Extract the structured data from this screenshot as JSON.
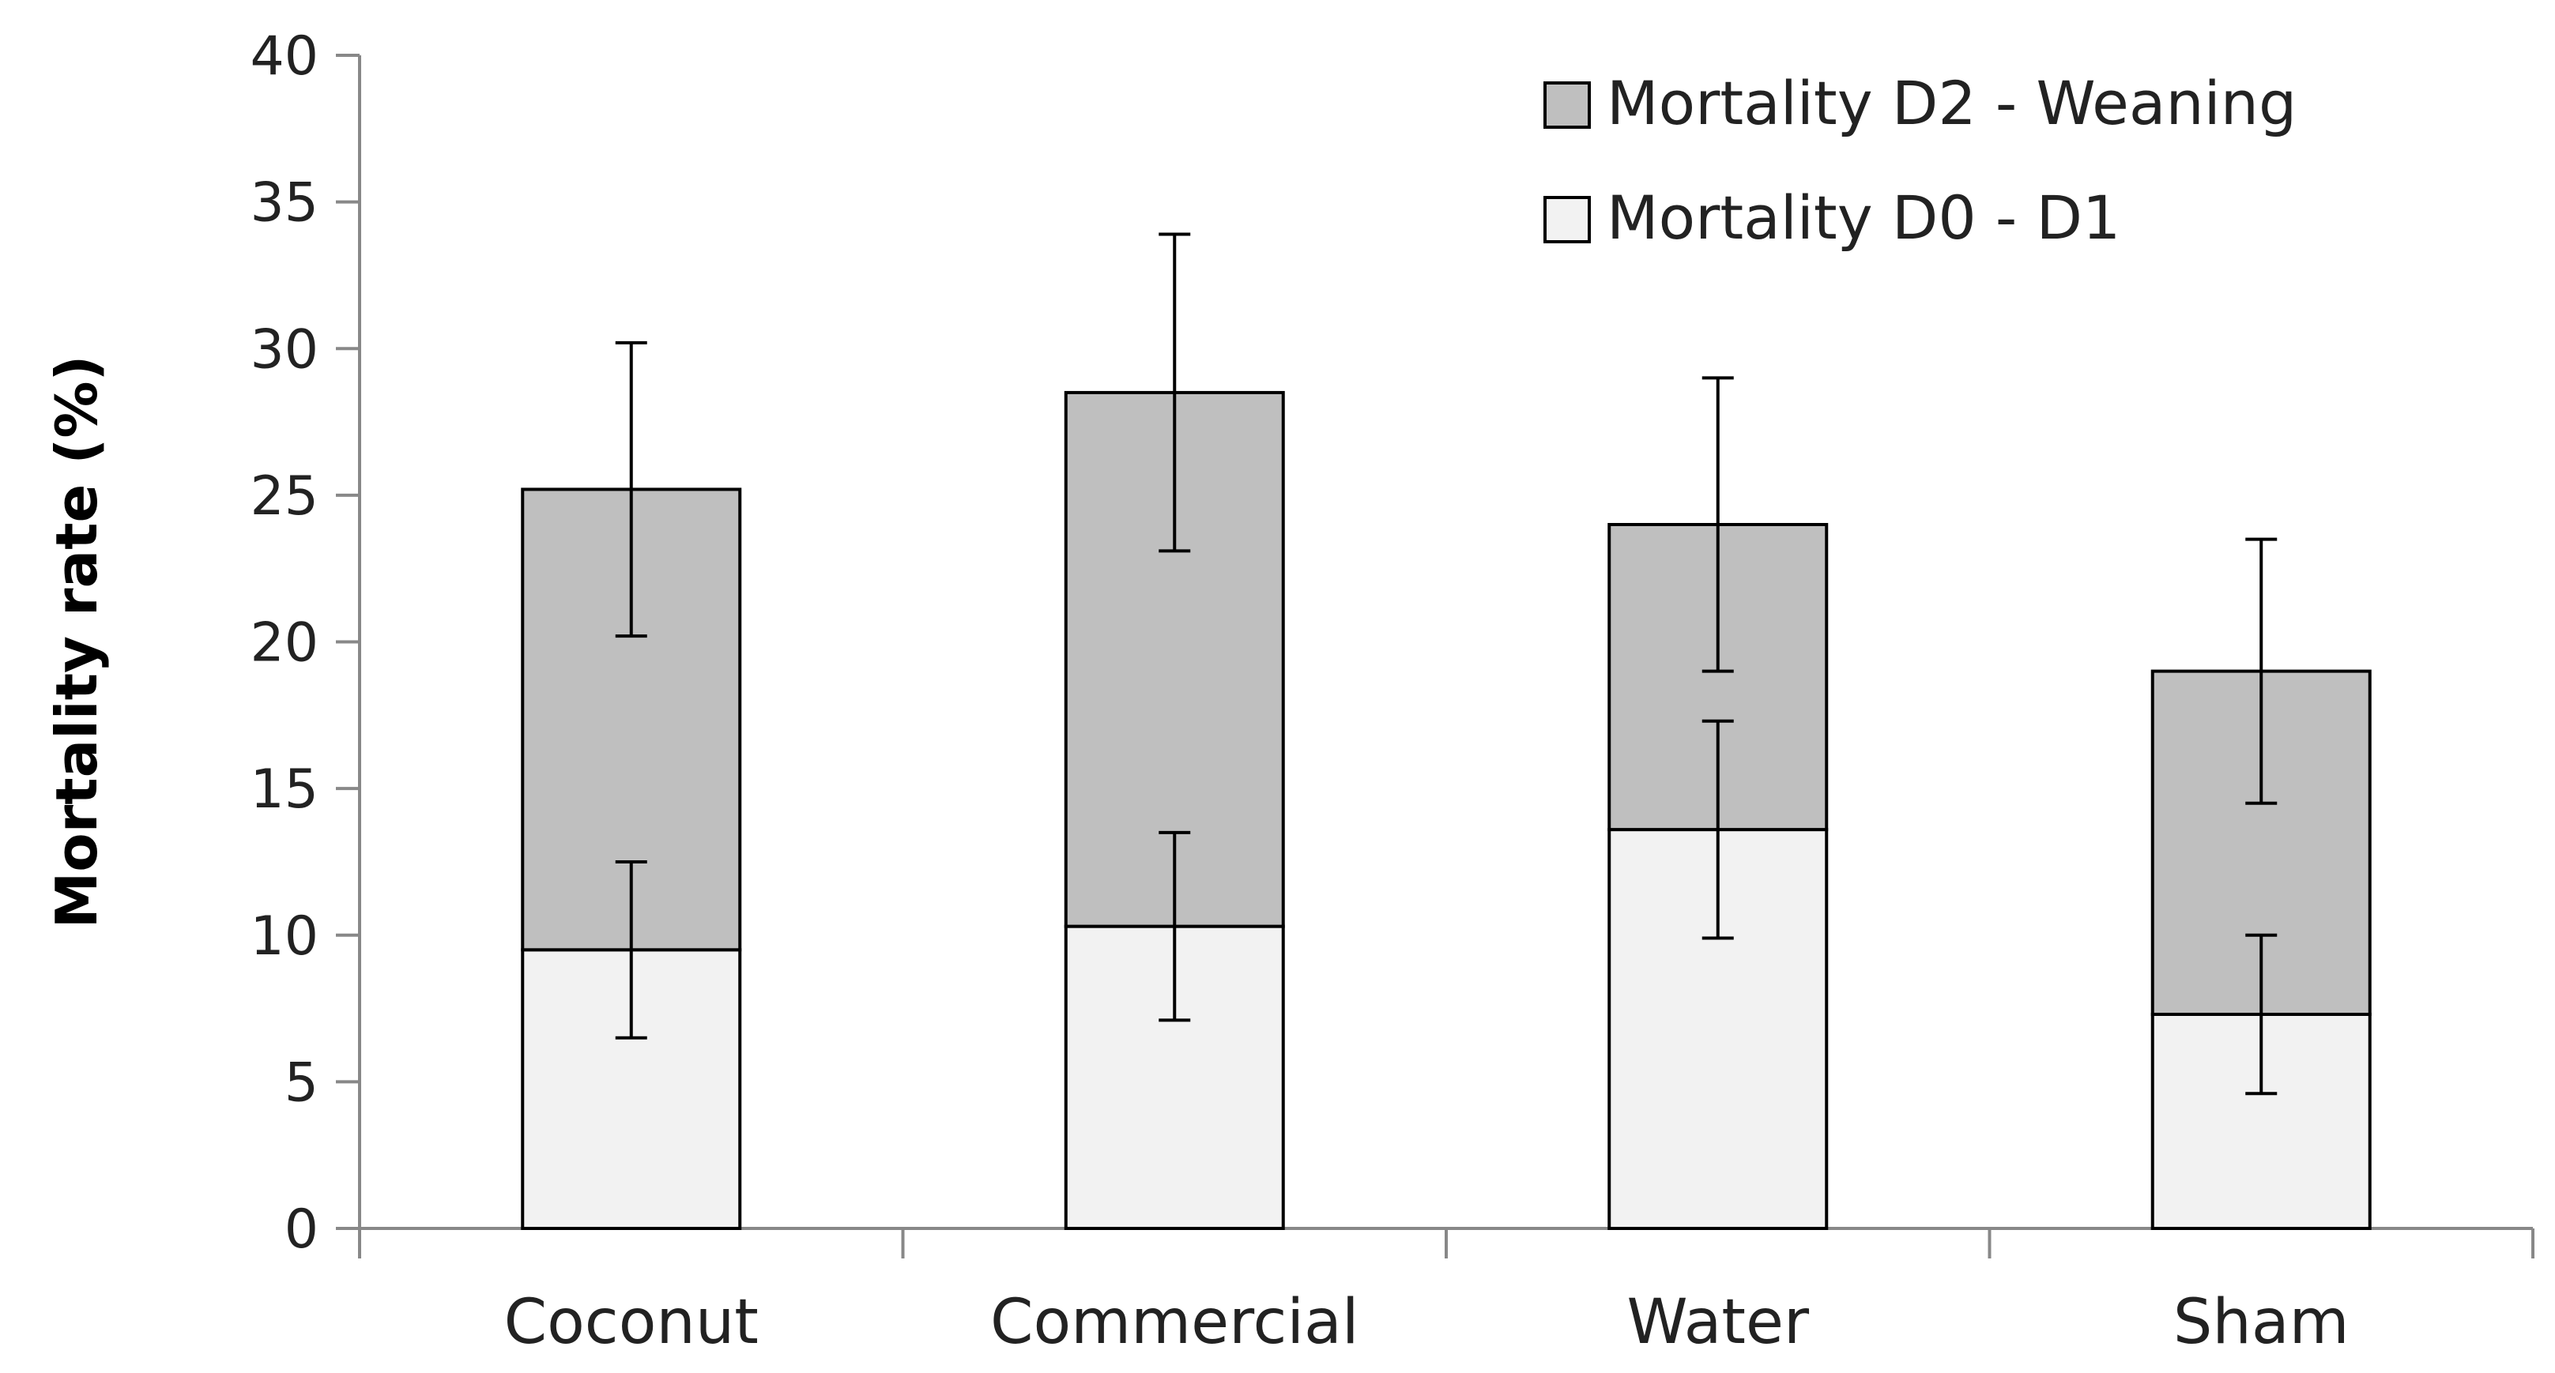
{
  "chart_data": {
    "type": "bar",
    "stacked": true,
    "categories": [
      "Coconut",
      "Commercial",
      "Water",
      "Sham"
    ],
    "series": [
      {
        "name": "Mortality D0 - D1",
        "values": [
          9.5,
          10.3,
          13.6,
          7.3
        ],
        "error": [
          3.0,
          3.2,
          3.7,
          2.7
        ],
        "color": "#f2f2f2"
      },
      {
        "name": "Mortality D2 - Weaning",
        "values": [
          15.7,
          18.2,
          10.4,
          11.7
        ],
        "error": [
          5.0,
          5.4,
          5.0,
          4.5
        ],
        "color": "#bfbfbf"
      }
    ],
    "title": "",
    "xlabel": "",
    "ylabel": "Mortality rate (%)",
    "ylim": [
      0,
      40
    ],
    "yticks": [
      0,
      5,
      10,
      15,
      20,
      25,
      30,
      35,
      40
    ],
    "grid": false,
    "legend_position": "top-right",
    "legend_order": [
      "Mortality D2 - Weaning",
      "Mortality D0 - D1"
    ]
  }
}
